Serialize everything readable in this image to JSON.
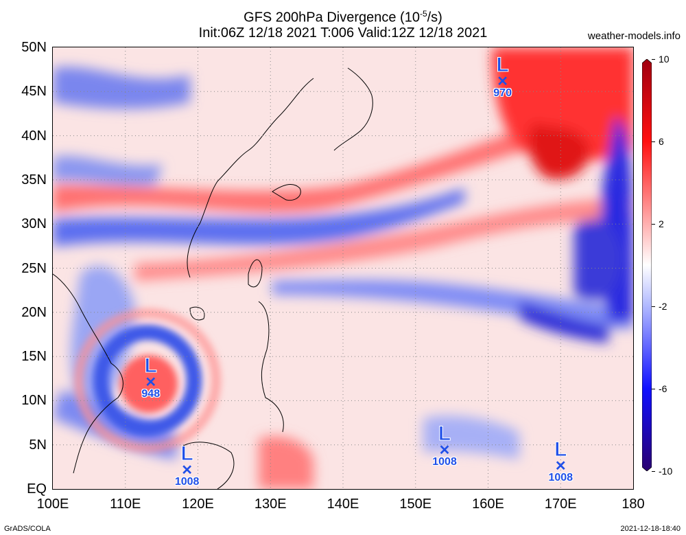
{
  "header": {
    "title_prefix": "GFS 200hPa Divergence (10",
    "title_exp": "-5",
    "title_suffix": "/s)",
    "subtitle": "Init:06Z 12/18 2021 T:006 Valid:12Z 12/18 2021",
    "brand": "weather-models.info"
  },
  "map": {
    "lat_labels": [
      "50N",
      "45N",
      "40N",
      "35N",
      "30N",
      "25N",
      "20N",
      "15N",
      "10N",
      "5N",
      "EQ"
    ],
    "lat_values": [
      50,
      45,
      40,
      35,
      30,
      25,
      20,
      15,
      10,
      5,
      0
    ],
    "lon_labels": [
      "100E",
      "110E",
      "120E",
      "130E",
      "140E",
      "150E",
      "160E",
      "170E",
      "180"
    ],
    "lon_values": [
      100,
      110,
      120,
      130,
      140,
      150,
      160,
      170,
      180
    ],
    "lat_range": [
      0,
      50
    ],
    "lon_range": [
      100,
      180
    ],
    "grid": "dotted"
  },
  "colorbar": {
    "labels": [
      "10",
      "6",
      "2",
      "-2",
      "-6",
      "-10"
    ],
    "values": [
      10,
      6,
      2,
      -2,
      -6,
      -10
    ],
    "colors": [
      "#a00010",
      "#ff1010",
      "#ffb0b0",
      "#ffffff",
      "#b0b8ff",
      "#1010ff",
      "#2a0070"
    ]
  },
  "lows": [
    {
      "id": "low-970",
      "letter": "L",
      "pressure": "970",
      "lon": 162,
      "lat": 46
    },
    {
      "id": "low-948",
      "letter": "L",
      "pressure": "948",
      "lon": 113.5,
      "lat": 12
    },
    {
      "id": "low-1008-a",
      "letter": "L",
      "pressure": "1008",
      "lon": 118.5,
      "lat": 2
    },
    {
      "id": "low-1008-b",
      "letter": "L",
      "pressure": "1008",
      "lon": 154,
      "lat": 4.3
    },
    {
      "id": "low-1008-c",
      "letter": "L",
      "pressure": "1008",
      "lon": 170,
      "lat": 2.5
    }
  ],
  "footer": {
    "left": "GrADS/COLA",
    "right": "2021-12-18-18:40"
  }
}
